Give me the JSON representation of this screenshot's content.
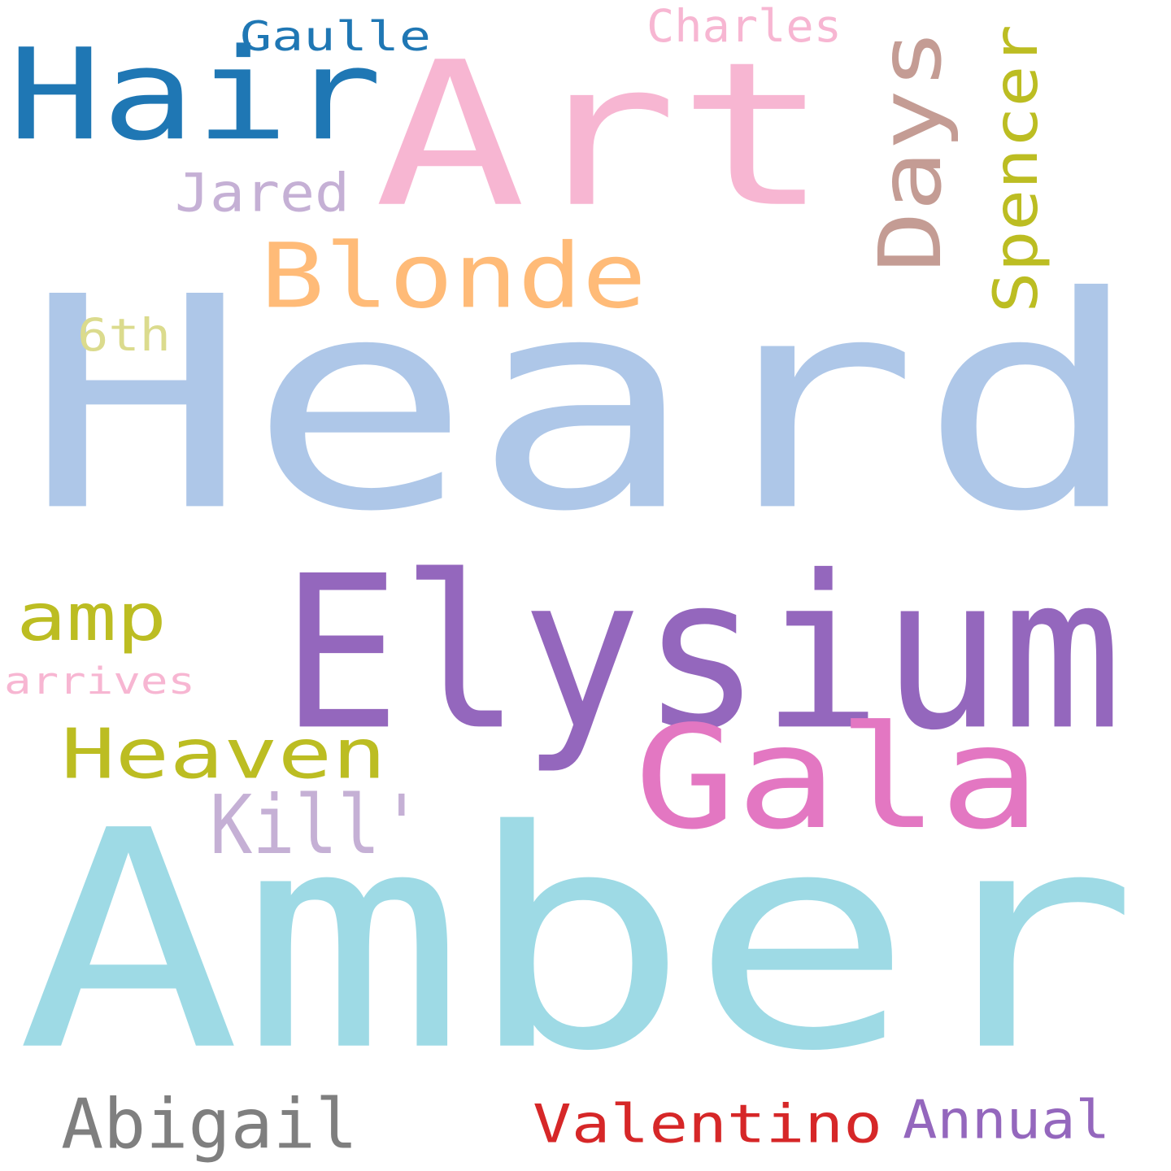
{
  "words": [
    {
      "text": "Heard",
      "color": "#aec7e8"
    },
    {
      "text": "Amber",
      "color": "#9edae5"
    },
    {
      "text": "Art",
      "color": "#f7b6d2"
    },
    {
      "text": "Elysium",
      "color": "#9467bd"
    },
    {
      "text": "Hair",
      "color": "#1f77b4"
    },
    {
      "text": "Gala",
      "color": "#e377c2"
    },
    {
      "text": "Days",
      "color": "#c49c94"
    },
    {
      "text": "Blonde",
      "color": "#ffbb78"
    },
    {
      "text": "Heaven",
      "color": "#bcbd22"
    },
    {
      "text": "Kill'",
      "color": "#c5b0d5"
    },
    {
      "text": "Spencer",
      "color": "#bcbd22"
    },
    {
      "text": "amp",
      "color": "#bcbd22"
    },
    {
      "text": "Abigail",
      "color": "#7f7f7f"
    },
    {
      "text": "Valentino",
      "color": "#d62728"
    },
    {
      "text": "Annual",
      "color": "#9467bd"
    },
    {
      "text": "Jared",
      "color": "#c5b0d5"
    },
    {
      "text": "6th",
      "color": "#dbdb8d"
    },
    {
      "text": "Charles",
      "color": "#f7b6d2"
    },
    {
      "text": "Gaulle",
      "color": "#1f77b4"
    },
    {
      "text": "arrives",
      "color": "#f7b6d2"
    }
  ]
}
